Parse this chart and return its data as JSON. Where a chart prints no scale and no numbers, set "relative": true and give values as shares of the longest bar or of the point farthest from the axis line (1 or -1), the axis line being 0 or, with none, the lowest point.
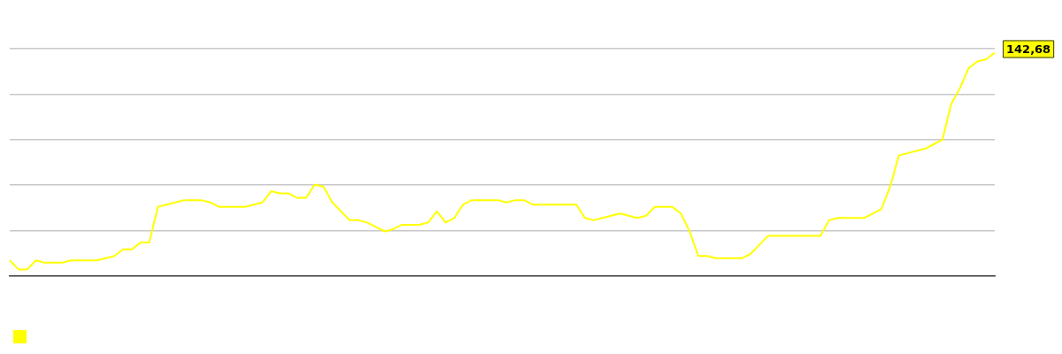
{
  "chart_data": {
    "type": "line",
    "relative": true,
    "grid": "y",
    "marker": "none",
    "line_style": "solid",
    "annotations": [
      "142,68"
    ],
    "categories": [
      null,
      null,
      null,
      null,
      null,
      null,
      null,
      null,
      null,
      null,
      null,
      null,
      null,
      null,
      null,
      null,
      null,
      null,
      null,
      null,
      null,
      null,
      null,
      null,
      null,
      null,
      null,
      null,
      null,
      null,
      null,
      null,
      null,
      null,
      null,
      null,
      null,
      null,
      null,
      null,
      null,
      null,
      null,
      null,
      null,
      null,
      null,
      null,
      null,
      null,
      null,
      null,
      null,
      null,
      null,
      null,
      null,
      null,
      null,
      null,
      null,
      null,
      null,
      null,
      null,
      null,
      null,
      null,
      null,
      null,
      null,
      null,
      null,
      null,
      null,
      null,
      null,
      null,
      null,
      null,
      null,
      null,
      null,
      null,
      null,
      null,
      null,
      null,
      null,
      null,
      null,
      null,
      null,
      null,
      null,
      null,
      null,
      null,
      null,
      null,
      null,
      null,
      null,
      null,
      null,
      null,
      null,
      null,
      null,
      null,
      null,
      null,
      null,
      null
    ],
    "series": [
      {
        "color": "#ffff00",
        "values": [
          0.07,
          0.03,
          0.03,
          0.07,
          0.06,
          0.06,
          0.06,
          0.07,
          0.07,
          0.07,
          0.07,
          0.08,
          0.09,
          0.12,
          0.12,
          0.15,
          0.15,
          0.31,
          0.32,
          0.33,
          0.34,
          0.34,
          0.34,
          0.33,
          0.31,
          0.31,
          0.31,
          0.31,
          0.32,
          0.33,
          0.38,
          0.37,
          0.37,
          0.35,
          0.35,
          0.41,
          0.4,
          0.33,
          0.29,
          0.25,
          0.25,
          0.24,
          0.22,
          0.2,
          0.21,
          0.23,
          0.23,
          0.23,
          0.24,
          0.29,
          0.24,
          0.26,
          0.32,
          0.34,
          0.34,
          0.34,
          0.34,
          0.33,
          0.34,
          0.34,
          0.32,
          0.32,
          0.32,
          0.32,
          0.32,
          0.32,
          0.26,
          0.25,
          0.26,
          0.27,
          0.28,
          0.27,
          0.26,
          0.27,
          0.31,
          0.31,
          0.31,
          0.28,
          0.2,
          0.09,
          0.09,
          0.08,
          0.08,
          0.08,
          0.08,
          0.1,
          0.14,
          0.18,
          0.18,
          0.18,
          0.18,
          0.18,
          0.18,
          0.18,
          0.25,
          0.26,
          0.26,
          0.26,
          0.26,
          0.28,
          0.3,
          0.4,
          0.54,
          0.55,
          0.56,
          0.57,
          0.59,
          0.61,
          0.77,
          0.84,
          0.93,
          0.96,
          0.97,
          1
        ]
      }
    ]
  }
}
